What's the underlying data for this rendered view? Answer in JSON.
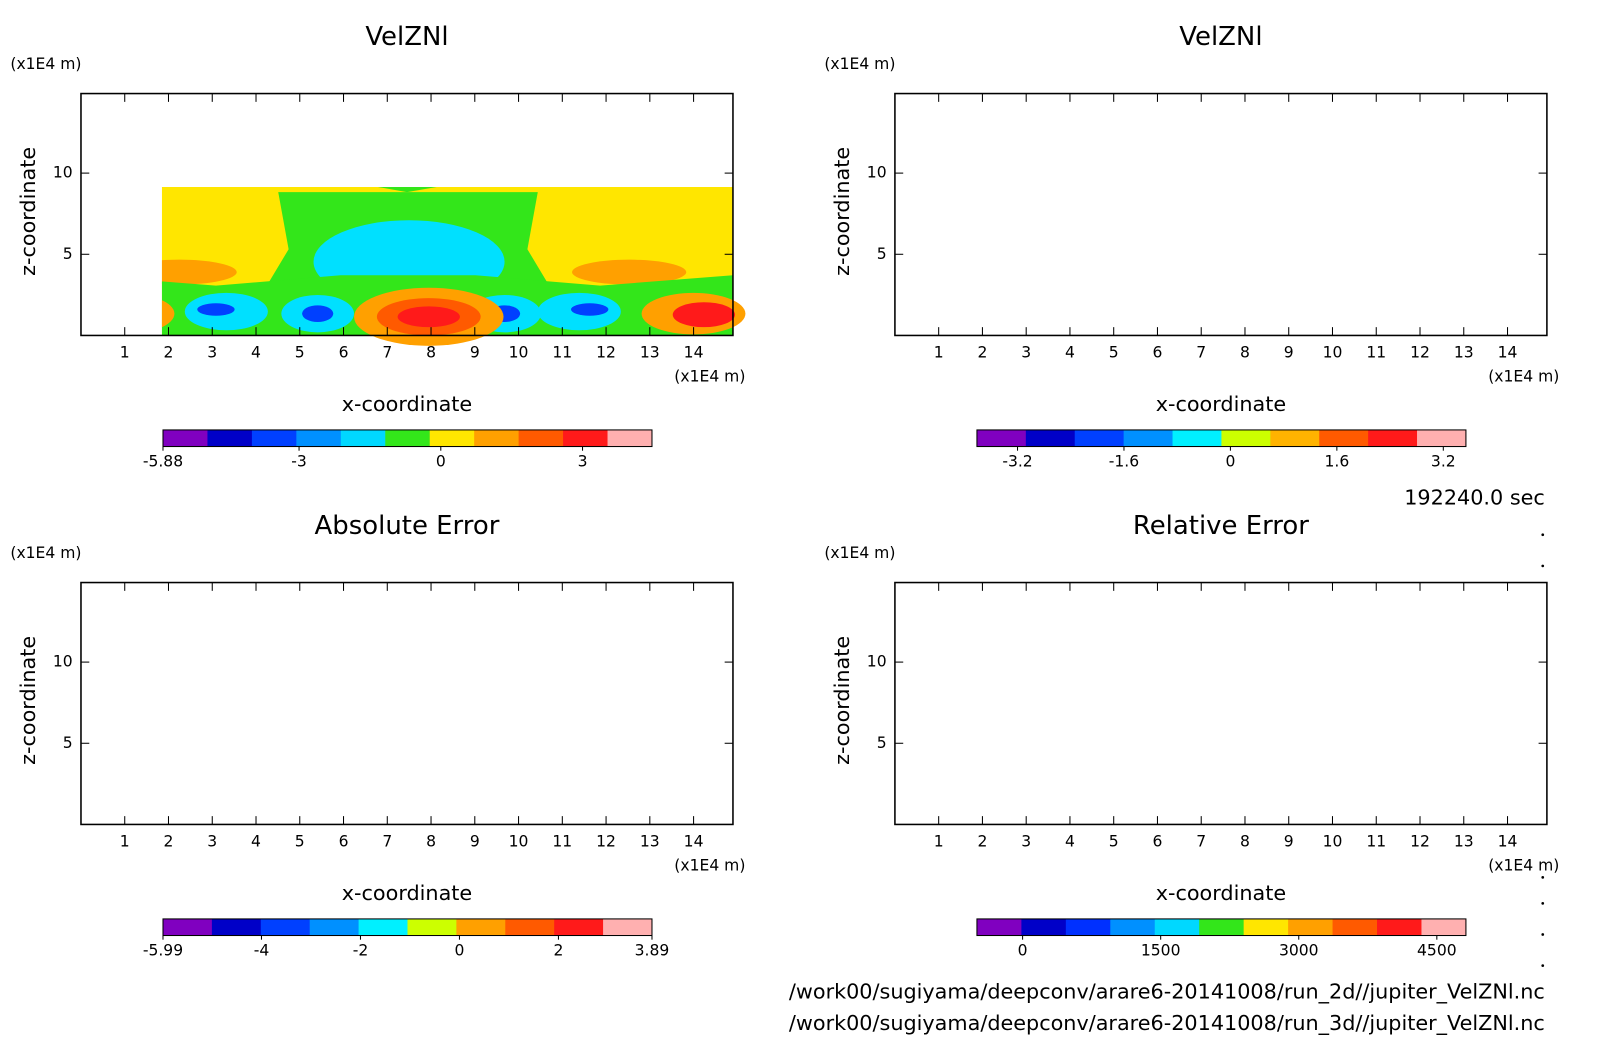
{
  "chart_data": [
    {
      "type": "contour",
      "title": "VelZNl",
      "xlabel": "x-coordinate",
      "ylabel": "z-coordinate",
      "x_unit": "(x1E4 m)",
      "y_unit": "(x1E4 m)",
      "xlim": [
        0,
        14.9
      ],
      "ylim": [
        0,
        14.9
      ],
      "xticks": [
        1,
        2,
        3,
        4,
        5,
        6,
        7,
        8,
        9,
        10,
        11,
        12,
        13,
        14
      ],
      "yticks": [
        5,
        10
      ],
      "colorbar": {
        "lim": [
          -5.88,
          4.47
        ],
        "ticks": [
          -5.88,
          -3,
          0,
          3
        ],
        "colors": [
          "#8000c0",
          "#0000c8",
          "#0040ff",
          "#0090ff",
          "#00d8ff",
          "#33e61a",
          "#ffe600",
          "#ffa000",
          "#ff5a00",
          "#ff1a1a",
          "#ffb0b0"
        ]
      }
    },
    {
      "type": "contour",
      "title": "VelZNl",
      "xlabel": "x-coordinate",
      "ylabel": "z-coordinate",
      "x_unit": "(x1E4 m)",
      "y_unit": "(x1E4 m)",
      "xlim": [
        0,
        14.9
      ],
      "ylim": [
        0,
        14.9
      ],
      "xticks": [
        1,
        2,
        3,
        4,
        5,
        6,
        7,
        8,
        9,
        10,
        11,
        12,
        13,
        14
      ],
      "yticks": [
        5,
        10
      ],
      "colorbar": {
        "lim": [
          -3.81,
          3.54
        ],
        "ticks": [
          -3.2,
          -1.6,
          0,
          1.6,
          3.2
        ],
        "colors": [
          "#8000c0",
          "#0000c8",
          "#0040ff",
          "#0090ff",
          "#00f0ff",
          "#ccff00",
          "#ffb300",
          "#ff5a00",
          "#ff1a1a",
          "#ffb0b0"
        ]
      }
    },
    {
      "type": "contour",
      "title": "Absolute Error",
      "xlabel": "x-coordinate",
      "ylabel": "z-coordinate",
      "x_unit": "(x1E4 m)",
      "y_unit": "(x1E4 m)",
      "xlim": [
        0,
        14.9
      ],
      "ylim": [
        0,
        14.9
      ],
      "xticks": [
        1,
        2,
        3,
        4,
        5,
        6,
        7,
        8,
        9,
        10,
        11,
        12,
        13,
        14
      ],
      "yticks": [
        5,
        10
      ],
      "colorbar": {
        "lim": [
          -5.99,
          3.89
        ],
        "ticks": [
          -5.99,
          -4,
          -2,
          0,
          2,
          3.89
        ],
        "colors": [
          "#8000c0",
          "#0000c8",
          "#0040ff",
          "#0090ff",
          "#00f0ff",
          "#ccff00",
          "#ffa000",
          "#ff5a00",
          "#ff1a1a",
          "#ffb0b0"
        ]
      }
    },
    {
      "type": "contour",
      "title": "Relative Error",
      "xlabel": "x-coordinate",
      "ylabel": "z-coordinate",
      "x_unit": "(x1E4 m)",
      "y_unit": "(x1E4 m)",
      "xlim": [
        0,
        14.9
      ],
      "ylim": [
        0,
        14.9
      ],
      "xticks": [
        1,
        2,
        3,
        4,
        5,
        6,
        7,
        8,
        9,
        10,
        11,
        12,
        13,
        14
      ],
      "yticks": [
        5,
        10
      ],
      "colorbar": {
        "lim": [
          -496,
          4816
        ],
        "ticks": [
          0,
          1500,
          3000,
          4500
        ],
        "colors": [
          "#8000c0",
          "#0000c8",
          "#0030ff",
          "#0090ff",
          "#00d8ff",
          "#33e61a",
          "#ffe600",
          "#ffa000",
          "#ff5a00",
          "#ff1a1a",
          "#ffb0b0"
        ]
      }
    }
  ],
  "time_label": "192240.0 sec",
  "file_paths": [
    "/work00/sugiyama/deepconv/arare6-20141008/run_2d//jupiter_VelZNl.nc",
    "/work00/sugiyama/deepconv/arare6-20141008/run_3d//jupiter_VelZNl.nc"
  ]
}
